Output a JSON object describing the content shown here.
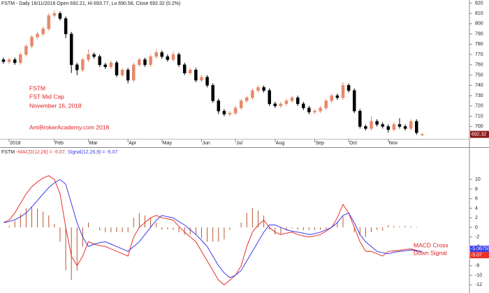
{
  "chart_data": [
    {
      "type": "candlestick",
      "title": "FSTM - Daily 16/11/2018 Open 692.21, Hi 693.77, Lo 690.58, Close 692.32 (0.2%)",
      "annotations": [
        "FSTM",
        "FST Mid Cap",
        "November 16, 2018",
        "AmiBrokerAcademy.com  2018"
      ],
      "categories": [
        null,
        "2018",
        null,
        null,
        null,
        null,
        null,
        null,
        null,
        "Feb",
        null,
        null,
        null,
        null,
        null,
        "Mar",
        null,
        null,
        null,
        null,
        null,
        null,
        "Apr",
        null,
        null,
        null,
        null,
        null,
        "May",
        null,
        null,
        null,
        null,
        null,
        null,
        "Jun",
        null,
        null,
        null,
        null,
        null,
        "Jul",
        null,
        null,
        null,
        null,
        null,
        null,
        "Aug",
        null,
        null,
        null,
        null,
        null,
        null,
        "Sep",
        null,
        null,
        null,
        null,
        null,
        "Oct",
        null,
        null,
        null,
        null,
        null,
        null,
        "Nov",
        null,
        null,
        null,
        null,
        null,
        null
      ],
      "open": [
        765,
        763,
        765,
        762,
        770,
        778,
        787,
        790,
        795,
        808,
        810,
        805,
        790,
        760,
        755,
        765,
        770,
        768,
        760,
        758,
        762,
        750,
        755,
        745,
        760,
        765,
        760,
        768,
        772,
        768,
        765,
        770,
        760,
        752,
        755,
        745,
        748,
        740,
        725,
        715,
        712,
        713,
        718,
        725,
        728,
        735,
        738,
        735,
        722,
        720,
        722,
        725,
        728,
        722,
        718,
        714,
        715,
        718,
        725,
        730,
        728,
        740,
        735,
        715,
        700,
        698,
        705,
        702,
        700,
        697,
        702,
        700,
        698,
        705,
        692.21
      ],
      "high": [
        767,
        767,
        767,
        772,
        780,
        789,
        792,
        797,
        810,
        813,
        812,
        807,
        792,
        762,
        767,
        775,
        772,
        770,
        762,
        764,
        764,
        757,
        757,
        762,
        767,
        767,
        770,
        775,
        774,
        770,
        773,
        772,
        762,
        757,
        757,
        750,
        750,
        742,
        727,
        717,
        715,
        720,
        727,
        730,
        737,
        740,
        740,
        737,
        724,
        724,
        727,
        730,
        730,
        724,
        720,
        717,
        720,
        727,
        732,
        732,
        743,
        742,
        737,
        717,
        702,
        710,
        707,
        704,
        702,
        704,
        708,
        702,
        707,
        707,
        693.77
      ],
      "low": [
        761,
        761,
        760,
        760,
        768,
        776,
        785,
        788,
        793,
        806,
        803,
        786,
        752,
        750,
        753,
        763,
        766,
        758,
        756,
        756,
        748,
        748,
        742,
        743,
        758,
        758,
        758,
        766,
        766,
        763,
        763,
        758,
        750,
        750,
        743,
        743,
        738,
        723,
        712,
        710,
        710,
        711,
        716,
        723,
        726,
        733,
        733,
        720,
        718,
        718,
        720,
        723,
        720,
        716,
        712,
        712,
        713,
        716,
        723,
        726,
        726,
        733,
        713,
        698,
        696,
        696,
        700,
        698,
        694,
        695,
        698,
        696,
        696,
        692,
        690.58
      ],
      "close": [
        763,
        765,
        762,
        770,
        778,
        787,
        790,
        795,
        808,
        810,
        805,
        790,
        760,
        755,
        765,
        770,
        768,
        760,
        758,
        762,
        750,
        755,
        745,
        760,
        765,
        760,
        768,
        772,
        768,
        765,
        770,
        760,
        752,
        755,
        745,
        748,
        740,
        725,
        715,
        712,
        713,
        718,
        725,
        728,
        735,
        738,
        735,
        722,
        720,
        722,
        725,
        728,
        722,
        718,
        714,
        715,
        718,
        725,
        730,
        728,
        740,
        735,
        715,
        700,
        698,
        705,
        702,
        700,
        697,
        702,
        700,
        698,
        705,
        694,
        692.32
      ],
      "up_color": "#e8896b",
      "down_color": "#000000",
      "ylim": [
        688,
        823
      ],
      "yticks": [
        700,
        710,
        720,
        730,
        740,
        750,
        760,
        770,
        780,
        790,
        800,
        810,
        820
      ]
    },
    {
      "type": "line",
      "title_parts": [
        "FSTM -",
        "MACD(12,26) = -5.07,",
        "Signal(12,26,9) = -5.07"
      ],
      "series": [
        {
          "color": "#e8302a",
          "values": [
            1,
            1.5,
            3,
            5,
            7,
            8.5,
            9.5,
            10.3,
            10.8,
            10,
            7,
            0,
            -6,
            -8,
            -6,
            -3,
            -3.5,
            -3.8,
            -4,
            -4.5,
            -5,
            -5.5,
            -6,
            -2,
            0,
            1,
            2,
            2.5,
            2,
            1.8,
            1.5,
            0.2,
            -1,
            -2,
            -3,
            -5,
            -7,
            -9,
            -11,
            -12,
            -11,
            -10,
            -8,
            -4,
            -1,
            0.5,
            1.5,
            0,
            -1,
            -1.5,
            -1.2,
            -1,
            -1.5,
            -1.8,
            -2,
            -1.8,
            -1.5,
            -0.8,
            0,
            2,
            4.8,
            3,
            0,
            -3,
            -5,
            -5,
            -5.5,
            -6,
            -5,
            -4.9,
            -4.8,
            -4.6,
            -4.5,
            -4.8,
            -5.07
          ]
        },
        {
          "color": "#3a3ae8",
          "values": [
            1,
            1.2,
            1.6,
            2.2,
            3,
            4.3,
            5.6,
            7,
            8.3,
            9.3,
            10,
            9,
            5,
            1,
            -2,
            -4,
            -3.5,
            -3.2,
            -3,
            -3.5,
            -4,
            -4.5,
            -5,
            -4,
            -3,
            -1.5,
            0,
            1.5,
            2.5,
            2.2,
            2,
            1.2,
            0.5,
            -0.5,
            -1.5,
            -2.7,
            -4,
            -6,
            -8,
            -9.5,
            -10.5,
            -10,
            -9,
            -7,
            -5,
            -3,
            -1,
            0.5,
            0.5,
            0,
            -0.5,
            -0.8,
            -1,
            -1.2,
            -1.5,
            -1.3,
            -1,
            -0.5,
            0,
            1,
            2.5,
            3,
            1,
            -1.5,
            -3,
            -4,
            -5,
            -5.3,
            -5.5,
            -5.2,
            -5,
            -4.9,
            -4.7,
            -4.9,
            -5.07
          ]
        }
      ],
      "histogram": {
        "color": "#b5562e",
        "values": [
          0,
          0.3,
          1.4,
          2.8,
          4,
          4.2,
          3.9,
          3.3,
          2.5,
          0.7,
          -3,
          -9,
          -11,
          -9,
          -4,
          1,
          0,
          -0.6,
          -1,
          -1,
          -1,
          -1,
          -1,
          2,
          3,
          2.5,
          2,
          1,
          -0.5,
          -0.4,
          -0.5,
          -1,
          -1.5,
          -1.5,
          -1.5,
          -2.3,
          -3,
          -3,
          -3,
          -2.5,
          -0.5,
          0,
          1,
          3,
          4,
          3.5,
          2.5,
          -0.5,
          -1.5,
          -1.5,
          -0.7,
          -0.2,
          -0.5,
          -0.6,
          -0.5,
          -0.5,
          -0.5,
          -0.3,
          0,
          1,
          2.3,
          0,
          -1,
          -1.5,
          -2,
          -1,
          -0.5,
          -0.7,
          0.5,
          0.3,
          0.2,
          0.3,
          0.2,
          0.1,
          0
        ]
      },
      "end_labels": [
        "-5.06750",
        "-5.07"
      ],
      "annotations": [
        "MACD Cross",
        "Down Signal"
      ],
      "ylim": [
        -13.7,
        16.3
      ],
      "yticks": [
        -12,
        -10,
        -8,
        -6,
        -4,
        -2,
        0,
        2,
        4,
        6,
        8,
        10
      ]
    }
  ]
}
